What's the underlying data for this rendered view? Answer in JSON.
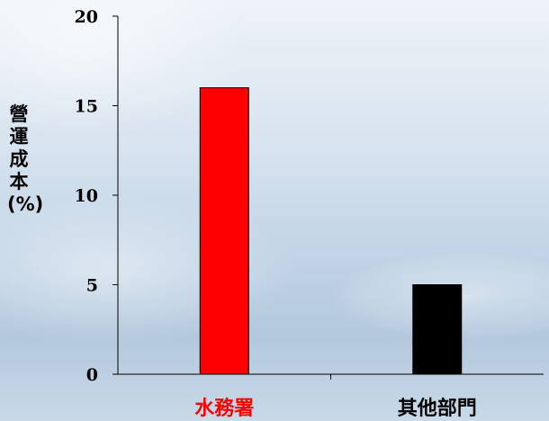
{
  "chart_data": {
    "type": "bar",
    "title": "",
    "xlabel": "",
    "ylabel": "營運成本 (%)",
    "categories": [
      "水務署",
      "其他部門"
    ],
    "values": [
      16,
      5
    ],
    "bar_colors": [
      "#ff0000",
      "#000000"
    ],
    "category_label_colors": [
      "#ff0000",
      "#000000"
    ],
    "ylim": [
      0,
      20
    ],
    "yticks": [
      "0",
      "5",
      "10",
      "15",
      "20"
    ],
    "grid": false,
    "legend": "none"
  }
}
